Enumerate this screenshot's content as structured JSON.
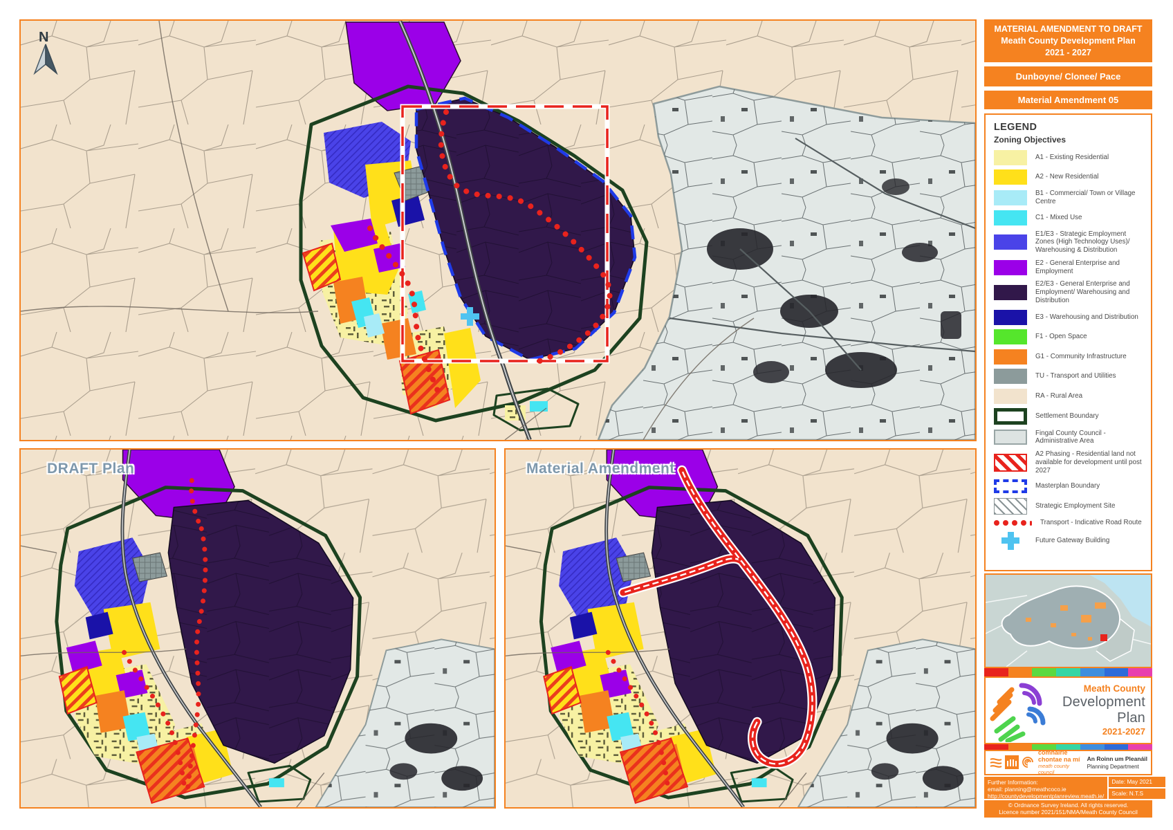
{
  "header": {
    "title_line1": "MATERIAL AMENDMENT TO DRAFT",
    "title_line2": "Meath County Development Plan",
    "title_line3": "2021 - 2027",
    "area": "Dunboyne/ Clonee/ Pace",
    "amendment": "Material Amendment 05"
  },
  "legend": {
    "title": "LEGEND",
    "subtitle": "Zoning Objectives",
    "items": [
      {
        "id": "a1",
        "label": "A1 - Existing Residential",
        "swatch": "solid",
        "color": "#F7F1A3"
      },
      {
        "id": "a2",
        "label": "A2 - New Residential",
        "swatch": "solid",
        "color": "#FFE01A"
      },
      {
        "id": "b1",
        "label": "B1 - Commercial/ Town or Village Centre",
        "swatch": "solid",
        "color": "#A8EBF7"
      },
      {
        "id": "c1",
        "label": "C1 - Mixed Use",
        "swatch": "solid",
        "color": "#45E5F2"
      },
      {
        "id": "e1e3",
        "label": "E1/E3 - Strategic Employment Zones (High Technology Uses)/ Warehousing & Distribution",
        "swatch": "solid",
        "color": "#4A43E8"
      },
      {
        "id": "e2",
        "label": "E2 - General Enterprise and Employment",
        "swatch": "solid",
        "color": "#9B00E8"
      },
      {
        "id": "e2e3",
        "label": "E2/E3 - General Enterprise and Employment/ Warehousing and Distribution",
        "swatch": "solid",
        "color": "#31184A"
      },
      {
        "id": "e3",
        "label": "E3 - Warehousing and Distribution",
        "swatch": "solid",
        "color": "#1A12A8"
      },
      {
        "id": "f1",
        "label": "F1 - Open Space",
        "swatch": "solid",
        "color": "#55E62C"
      },
      {
        "id": "g1",
        "label": "G1 - Community Infrastructure",
        "swatch": "solid",
        "color": "#F58220"
      },
      {
        "id": "tu",
        "label": "TU - Transport and Utilities",
        "swatch": "solid",
        "color": "#8C9B9B"
      },
      {
        "id": "ra",
        "label": "RA - Rural Area",
        "swatch": "solid",
        "color": "#F2E3CD"
      },
      {
        "id": "settlement",
        "label": "Settlement Boundary",
        "swatch": "outline",
        "color": "#1D4220"
      },
      {
        "id": "fingal",
        "label": "Fingal County Council - Administrative Area",
        "swatch": "fingal",
        "color": "#DDE3E2",
        "border": "#98A5A5"
      },
      {
        "id": "a2-phasing",
        "label": "A2 Phasing - Residential land not available for development until post 2027",
        "swatch": "hatch-red",
        "color": "#E8231D"
      },
      {
        "id": "masterplan",
        "label": "Masterplan Boundary",
        "swatch": "dash-blue",
        "color": "#1F3BE8"
      },
      {
        "id": "ses",
        "label": "Strategic Employment Site",
        "swatch": "hatch-gray",
        "color": "#8A9496"
      },
      {
        "id": "route",
        "label": "Transport - Indicative Road Route",
        "swatch": "dots",
        "color": "#E8231D"
      },
      {
        "id": "gateway",
        "label": "Future Gateway Building",
        "swatch": "plus",
        "color": "#4FC3F0"
      }
    ]
  },
  "maps": {
    "main": {
      "north": "N"
    },
    "draft": {
      "label": "DRAFT Plan"
    },
    "amendment": {
      "label": "Material Amendment"
    }
  },
  "branding": {
    "logo_top": "Meath County",
    "logo_main": "Development Plan",
    "logo_years": "2021-2027",
    "council_irish": "comhairle chontae na mí",
    "council_english": "meath county council",
    "dept_irish": "An Roinn um Pleanáil",
    "dept_english": "Planning Department"
  },
  "footer": {
    "further_info": "Further Information:",
    "email": "email: planning@meathcoco.ie",
    "url": "http://countydevelopmentplanreview.meath.ie/",
    "date": "Date: May 2021",
    "scale": "Scale: N.T.S",
    "copyright1": "© Ordnance Survey Ireland. All rights reserved.",
    "copyright2": "Licence number 2021/151/NMA/Meath County Council"
  },
  "colors": {
    "a1": "#F7F1A3",
    "a2": "#FFE01A",
    "b1": "#A8EBF7",
    "c1": "#45E5F2",
    "e1e3": "#4A43E8",
    "e2": "#9B00E8",
    "e2e3": "#31184A",
    "e3": "#1A12A8",
    "f1": "#55E62C",
    "g1": "#F58220",
    "tu": "#8C9B9B",
    "ra": "#F2E3CD",
    "fingal": "#E2E8E6",
    "settlement": "#1D4220",
    "phasing": "#E8231D",
    "masterplan": "#1F3BE8",
    "route": "#E8231D",
    "gateway": "#4FC3F0",
    "orange": "#F58220",
    "label": "#7E98AC"
  },
  "stripe_colors": [
    "#E8231D",
    "#F58220",
    "#5BD940",
    "#35D6A4",
    "#3E8EDE",
    "#2E6BD9",
    "#E83FAE"
  ]
}
